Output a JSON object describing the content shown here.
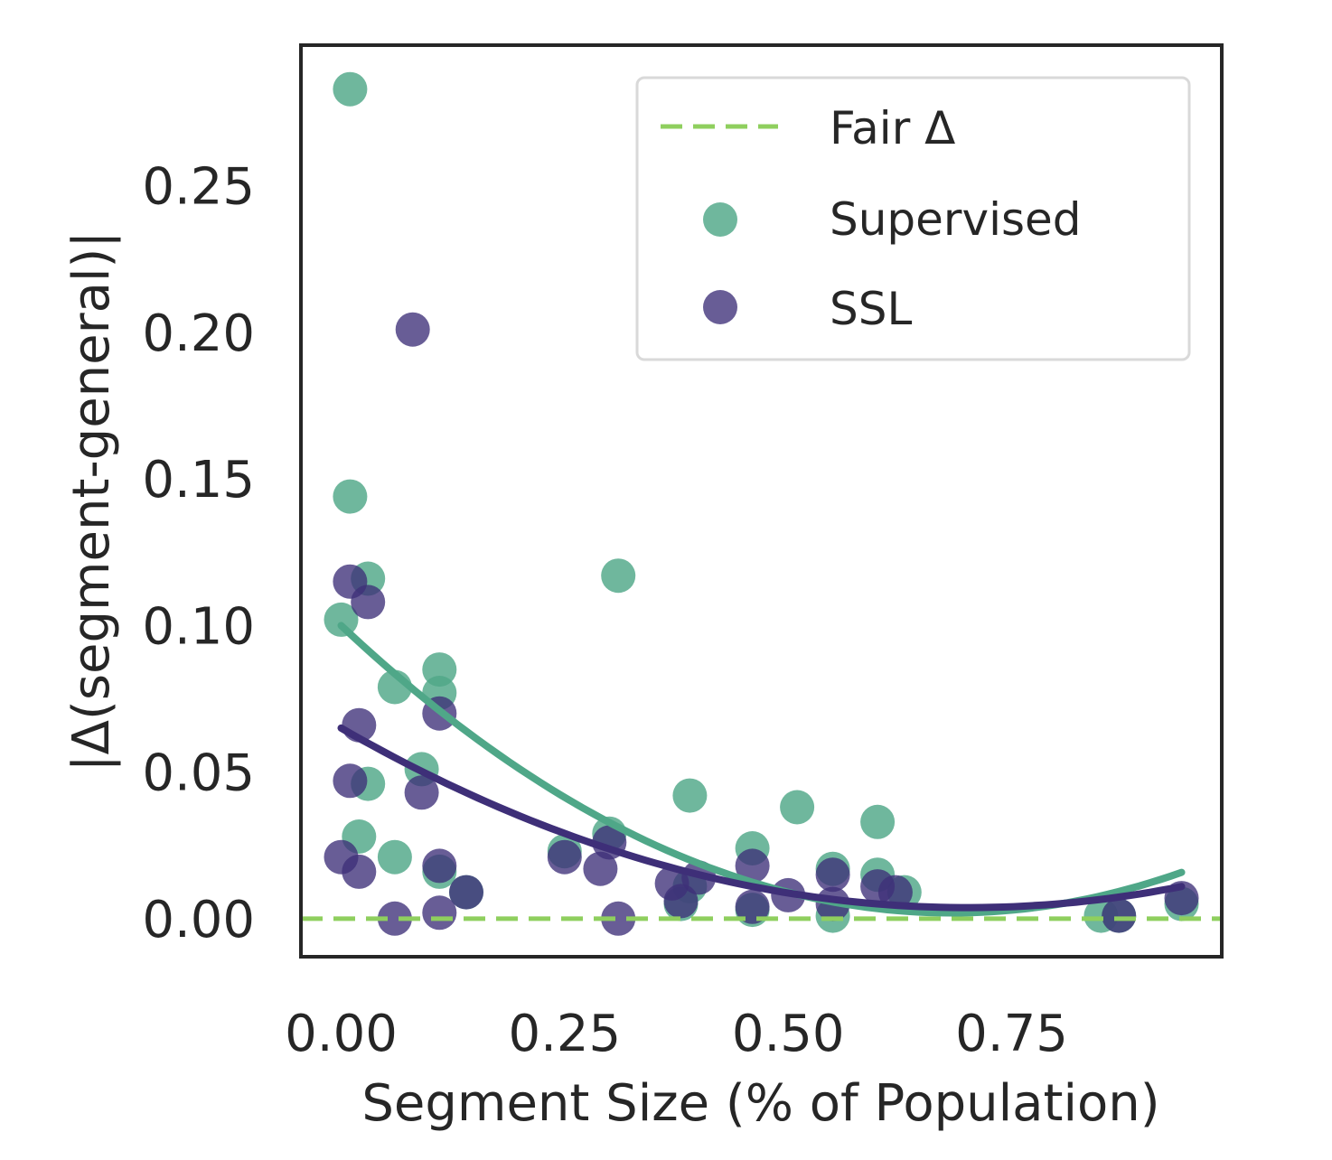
{
  "chart_data": {
    "type": "scatter",
    "xlabel": "Segment Size (% of Population)",
    "ylabel": "|Δ(segment-general)|",
    "xlim": [
      -0.045,
      0.985
    ],
    "ylim": [
      -0.013,
      0.298
    ],
    "xticks": [
      "0.00",
      "0.25",
      "0.50",
      "0.75"
    ],
    "xtick_values": [
      0.0,
      0.25,
      0.5,
      0.75
    ],
    "yticks": [
      "0.00",
      "0.05",
      "0.10",
      "0.15",
      "0.20",
      "0.25"
    ],
    "ytick_values": [
      0.0,
      0.05,
      0.1,
      0.15,
      0.2,
      0.25
    ],
    "grid": false,
    "legend_position": "top-right",
    "colors": {
      "supervised": "#4fa788",
      "ssl": "#3e2f78",
      "fair": "#8fcf5e",
      "frame": "#262626"
    },
    "reference_line": {
      "name": "Fair Δ",
      "y": 0.0,
      "style": "dashed"
    },
    "series": [
      {
        "name": "Supervised",
        "points": [
          [
            0.01,
            0.283
          ],
          [
            0.01,
            0.144
          ],
          [
            0.03,
            0.116
          ],
          [
            0.0,
            0.102
          ],
          [
            0.06,
            0.079
          ],
          [
            0.11,
            0.085
          ],
          [
            0.11,
            0.077
          ],
          [
            0.09,
            0.051
          ],
          [
            0.03,
            0.046
          ],
          [
            0.02,
            0.028
          ],
          [
            0.06,
            0.021
          ],
          [
            0.11,
            0.016
          ],
          [
            0.14,
            0.009
          ],
          [
            0.25,
            0.023
          ],
          [
            0.3,
            0.029
          ],
          [
            0.31,
            0.117
          ],
          [
            0.39,
            0.042
          ],
          [
            0.39,
            0.011
          ],
          [
            0.38,
            0.005
          ],
          [
            0.46,
            0.024
          ],
          [
            0.46,
            0.003
          ],
          [
            0.51,
            0.038
          ],
          [
            0.55,
            0.017
          ],
          [
            0.55,
            0.001
          ],
          [
            0.6,
            0.033
          ],
          [
            0.6,
            0.015
          ],
          [
            0.63,
            0.009
          ],
          [
            0.85,
            0.001
          ],
          [
            0.87,
            0.001
          ],
          [
            0.94,
            0.005
          ]
        ],
        "fit": {
          "curve": "quadratic",
          "x_range": [
            0.0,
            0.94
          ],
          "coef": [
            0.1,
            -0.287,
            0.21
          ]
        }
      },
      {
        "name": "SSL",
        "points": [
          [
            0.08,
            0.201
          ],
          [
            0.01,
            0.115
          ],
          [
            0.03,
            0.108
          ],
          [
            0.11,
            0.07
          ],
          [
            0.02,
            0.066
          ],
          [
            0.01,
            0.047
          ],
          [
            0.09,
            0.043
          ],
          [
            0.0,
            0.021
          ],
          [
            0.02,
            0.016
          ],
          [
            0.06,
            0.0
          ],
          [
            0.11,
            0.002
          ],
          [
            0.11,
            0.018
          ],
          [
            0.14,
            0.009
          ],
          [
            0.25,
            0.021
          ],
          [
            0.3,
            0.026
          ],
          [
            0.29,
            0.017
          ],
          [
            0.31,
            0.0
          ],
          [
            0.37,
            0.012
          ],
          [
            0.4,
            0.014
          ],
          [
            0.38,
            0.006
          ],
          [
            0.46,
            0.018
          ],
          [
            0.46,
            0.004
          ],
          [
            0.5,
            0.008
          ],
          [
            0.55,
            0.015
          ],
          [
            0.55,
            0.005
          ],
          [
            0.6,
            0.011
          ],
          [
            0.62,
            0.009
          ],
          [
            0.87,
            0.001
          ],
          [
            0.94,
            0.007
          ]
        ],
        "fit": {
          "curve": "quadratic",
          "x_range": [
            0.0,
            0.94
          ],
          "coef": [
            0.065,
            -0.175,
            0.125
          ]
        }
      }
    ]
  }
}
